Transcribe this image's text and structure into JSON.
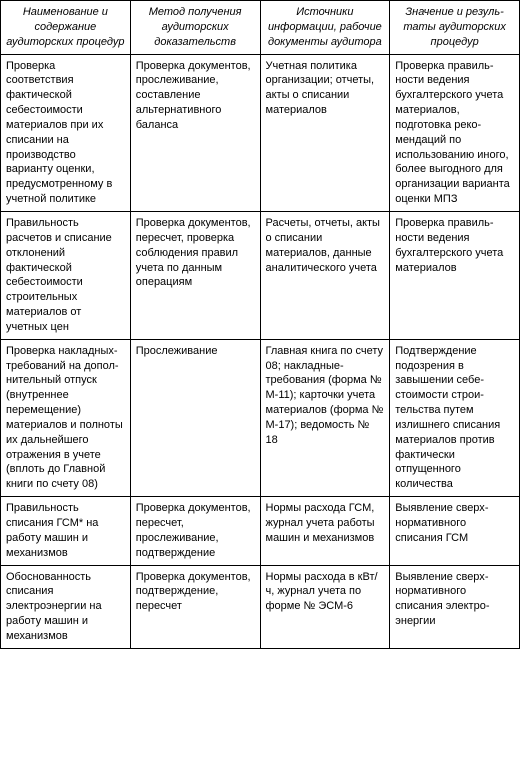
{
  "table": {
    "headers": [
      "Наименование и содержание аудиторских процедур",
      "Метод получе­ния аудиторских доказательств",
      "Источники информации, рабочие документы аудитора",
      "Значение и резуль­таты аудиторских процедур"
    ],
    "rows": [
      [
        "Проверка соответствия фактической себестоимости материалов при их списании на производство варианту оценки, предусмотренно­му в учетной политике",
        "Проверка документов, прослеживание, составление альтернативного баланса",
        "Учетная политика организации; отчеты, акты о списании материа­лов",
        "Проверка правиль­ности ведения бухгалтерского учета материалов, подготовка реко­мендаций по использованию иного, более выгодного для организации варианта оценки МПЗ"
      ],
      [
        "Правильность расчетов и списание отклонений фактической себестоимости строительных материалов от учетных цен",
        "Проверка документов, пересчет, проверка соблю­дения правил учета по данным опера­циям",
        "Расчеты, отчеты, акты о списании материалов, данные аналитичес­кого учета",
        "Проверка правиль­ности ведения бухгалтерского учета материалов"
      ],
      [
        "Проверка накладных-требо­ваний на допол­нительный отпуск (внутреннее перемещение) материалов и полноты их дальнейшего отражения в учете (вплоть до Главной книги по счету 08)",
        "Прослеживание",
        "Главная книга по счету 08; наклад­ные-требования (форма № М-11);  карточки учета материалов (форма № М-17); ведомость № 18",
        "Подтверждение подозрения в завышении себе­стоимости строи­тельства путем излишнего списания материа­лов против факти­чески отпущенного количества"
      ],
      [
        "Правильность списания ГСМ* на работу машин и механизмов",
        "Проверка документов, пересчет, прослеживание, подтверждение",
        "Нормы расхода ГСМ, журнал учета работы машин и механизмов",
        "Выявление сверх­нормативного списания ГСМ"
      ],
      [
        "Обоснованность списания электроэнергии на работу машин и механизмов",
        "Проверка документов, подтверждение, пересчет",
        "Нормы расхода в кВт/ч, журнал учета по форме № ЭСМ-6",
        "Выявление сверх­нормативного списания электро­энергии"
      ]
    ]
  }
}
